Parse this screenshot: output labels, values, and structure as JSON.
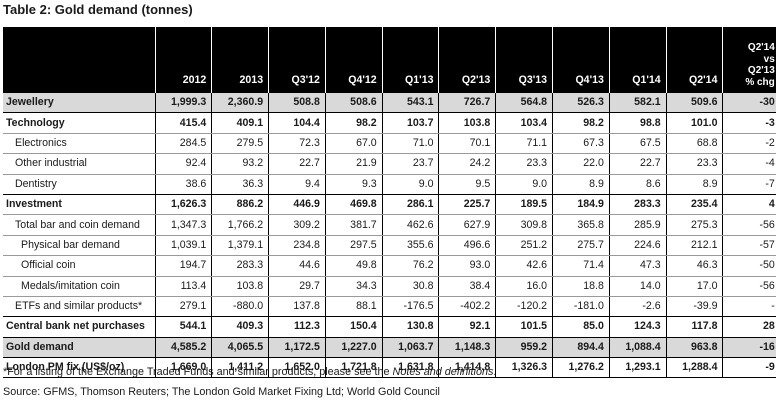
{
  "title": "Table 2: Gold demand (tonnes)",
  "columns": [
    "",
    "2012",
    "2013",
    "Q3'12",
    "Q4'12",
    "Q1'13",
    "Q2'13",
    "Q3'13",
    "Q4'13",
    "Q1'14",
    "Q2'14",
    "Q2'14 vs Q2'13 % chg"
  ],
  "rows": [
    {
      "label": "Jewellery",
      "values": [
        "1,999.3",
        "2,360.9",
        "508.8",
        "508.6",
        "543.1",
        "726.7",
        "564.8",
        "526.3",
        "582.1",
        "509.6",
        "-30"
      ]
    },
    {
      "label": "Technology",
      "values": [
        "415.4",
        "409.1",
        "104.4",
        "98.2",
        "103.7",
        "103.8",
        "103.4",
        "98.2",
        "98.8",
        "101.0",
        "-3"
      ]
    },
    {
      "label": "Electronics",
      "values": [
        "284.5",
        "279.5",
        "72.3",
        "67.0",
        "71.0",
        "70.1",
        "71.1",
        "67.3",
        "67.5",
        "68.8",
        "-2"
      ]
    },
    {
      "label": "Other industrial",
      "values": [
        "92.4",
        "93.2",
        "22.7",
        "21.9",
        "23.7",
        "24.2",
        "23.3",
        "22.0",
        "22.7",
        "23.3",
        "-4"
      ]
    },
    {
      "label": "Dentistry",
      "values": [
        "38.6",
        "36.3",
        "9.4",
        "9.3",
        "9.0",
        "9.5",
        "9.0",
        "8.9",
        "8.6",
        "8.9",
        "-7"
      ]
    },
    {
      "label": "Investment",
      "values": [
        "1,626.3",
        "886.2",
        "446.9",
        "469.8",
        "286.1",
        "225.7",
        "189.5",
        "184.9",
        "283.3",
        "235.4",
        "4"
      ]
    },
    {
      "label": "Total bar and coin demand",
      "values": [
        "1,347.3",
        "1,766.2",
        "309.2",
        "381.7",
        "462.6",
        "627.9",
        "309.8",
        "365.8",
        "285.9",
        "275.3",
        "-56"
      ]
    },
    {
      "label": "Physical bar demand",
      "values": [
        "1,039.1",
        "1,379.1",
        "234.8",
        "297.5",
        "355.6",
        "496.6",
        "251.2",
        "275.7",
        "224.6",
        "212.1",
        "-57"
      ]
    },
    {
      "label": "Official coin",
      "values": [
        "194.7",
        "283.3",
        "44.6",
        "49.8",
        "76.2",
        "93.0",
        "42.6",
        "71.4",
        "47.3",
        "46.3",
        "-50"
      ]
    },
    {
      "label": "Medals/imitation coin",
      "values": [
        "113.4",
        "103.8",
        "29.7",
        "34.3",
        "30.8",
        "38.4",
        "16.0",
        "18.8",
        "14.0",
        "17.0",
        "-56"
      ]
    },
    {
      "label": "ETFs and similar products*",
      "values": [
        "279.1",
        "-880.0",
        "137.8",
        "88.1",
        "-176.5",
        "-402.2",
        "-120.2",
        "-181.0",
        "-2.6",
        "-39.9",
        "-"
      ]
    },
    {
      "label": "Central bank net purchases",
      "values": [
        "544.1",
        "409.3",
        "112.3",
        "150.4",
        "130.8",
        "92.1",
        "101.5",
        "85.0",
        "124.3",
        "117.8",
        "28"
      ]
    },
    {
      "label": "Gold demand",
      "values": [
        "4,585.2",
        "4,065.5",
        "1,172.5",
        "1,227.0",
        "1,063.7",
        "1,148.3",
        "959.2",
        "894.4",
        "1,088.4",
        "963.8",
        "-16"
      ]
    },
    {
      "label": "London PM fix (US$/oz)",
      "values": [
        "1,669.0",
        "1,411.2",
        "1,652.0",
        "1,721.8",
        "1,631.8",
        "1,414.8",
        "1,326.3",
        "1,276.2",
        "1,293.1",
        "1,288.4",
        "-9"
      ]
    }
  ],
  "footnote_text": "*For a listing of the Exchange Traded Funds and similar products, please see the ",
  "footnote_link": "Notes and definitions",
  "footnote_end": ".",
  "source": "Source: GFMS, Thomson Reuters; The London Gold Market Fixing Ltd; World Gold Council"
}
